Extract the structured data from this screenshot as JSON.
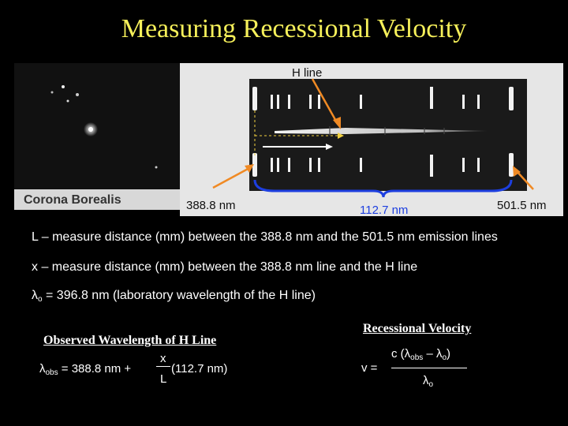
{
  "title": "Measuring Recessional Velocity",
  "photo": {
    "label_hline": "H line",
    "label_corona": "Corona Borealis",
    "label_388": "388.8 nm",
    "label_112": "112.7 nm",
    "label_501": "501.5 nm"
  },
  "lines": {
    "L_def": "L – measure distance (mm) between the 388.8 nm and the 501.5 nm emission lines",
    "x_def": "x – measure distance (mm) between the 388.8 nm line and the H line",
    "lambda0_def": "= 396.8 nm  (laboratory wavelength of the H line)"
  },
  "observed": {
    "heading": "Observed Wavelength of H Line",
    "lhs": "λ",
    "lhs_sub": "obs",
    "mid": " = 388.8 nm + ",
    "num": "x",
    "den": "L",
    "rhs": "(112.7 nm)"
  },
  "recession": {
    "heading": "Recessional Velocity",
    "lhs": "v = ",
    "num_a": "c (λ",
    "num_sub": "obs",
    "num_b": " – λ",
    "num_sub2": "o",
    "num_c": ")",
    "den": "λ",
    "den_sub": "o"
  },
  "colors": {
    "title": "#f6f05a",
    "arrow": "#f08a24",
    "bracket": "#1d3fe0"
  }
}
